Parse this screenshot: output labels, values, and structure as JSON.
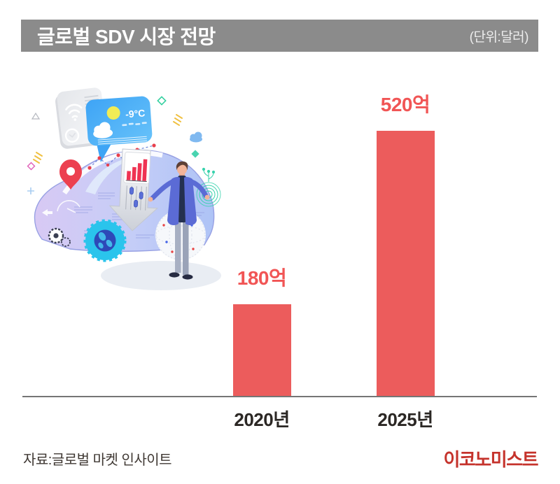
{
  "header": {
    "title": "글로벌 SDV 시장 전망",
    "unit_label": "(단위:달러)"
  },
  "chart_data": {
    "type": "bar",
    "title": "글로벌 SDV 시장 전망",
    "unit": "달러",
    "categories": [
      "2020년",
      "2025년"
    ],
    "values": [
      180,
      520
    ],
    "value_labels": [
      "180억",
      "520억"
    ],
    "ylim": [
      0,
      520
    ],
    "grid": false,
    "legend": "none",
    "bar_color": "#ec5c5c",
    "value_label_color": "#f15555"
  },
  "footer": {
    "source": "자료:글로벌 마켓 인사이트",
    "publisher": "이코노미스트"
  },
  "colors": {
    "header_bg": "#8b8b8b",
    "header_text": "#ffffff",
    "axis_line": "#757575",
    "category_text": "#2b2724",
    "source_text": "#3f3833",
    "logo_red": "#c5332c"
  },
  "illustration": {
    "description": "connected-car with presenter illustration",
    "weather_temp": "-9°C"
  }
}
